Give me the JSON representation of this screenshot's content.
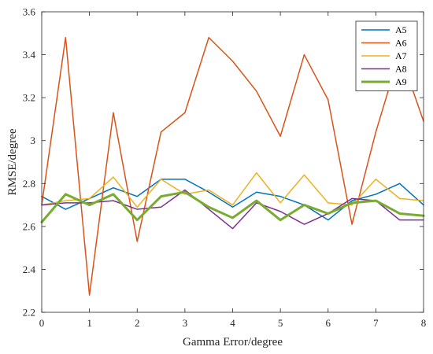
{
  "chart_data": {
    "type": "line",
    "xlabel": "Gamma Error/degree",
    "ylabel": "RMSE/degree",
    "xlim": [
      0,
      8
    ],
    "ylim": [
      2.2,
      3.6
    ],
    "xticks": [
      "0",
      "1",
      "2",
      "3",
      "4",
      "5",
      "6",
      "7",
      "8"
    ],
    "yticks": [
      "2.2",
      "2.4",
      "2.6",
      "2.8",
      "3",
      "3.2",
      "3.4",
      "3.6"
    ],
    "grid": false,
    "legend_position": "top-right",
    "x": [
      0,
      0.5,
      1,
      1.5,
      2,
      2.5,
      3,
      3.5,
      4,
      4.5,
      5,
      5.5,
      6,
      6.5,
      7,
      7.5,
      8
    ],
    "series": [
      {
        "name": "A5",
        "color": "#0072bd",
        "width": 1.5,
        "values": [
          2.74,
          2.68,
          2.73,
          2.78,
          2.74,
          2.82,
          2.82,
          2.76,
          2.69,
          2.76,
          2.74,
          2.7,
          2.63,
          2.72,
          2.75,
          2.8,
          2.7
        ]
      },
      {
        "name": "A6",
        "color": "#d95319",
        "width": 1.5,
        "values": [
          2.7,
          3.48,
          2.28,
          3.13,
          2.53,
          3.04,
          3.13,
          3.48,
          3.37,
          3.23,
          3.02,
          3.4,
          3.19,
          2.61,
          3.04,
          3.41,
          3.09
        ]
      },
      {
        "name": "A7",
        "color": "#edb120",
        "width": 1.5,
        "values": [
          2.7,
          2.72,
          2.73,
          2.83,
          2.69,
          2.82,
          2.75,
          2.77,
          2.7,
          2.85,
          2.71,
          2.84,
          2.71,
          2.7,
          2.82,
          2.73,
          2.72
        ]
      },
      {
        "name": "A8",
        "color": "#7e2f8e",
        "width": 1.5,
        "values": [
          2.7,
          2.71,
          2.71,
          2.72,
          2.68,
          2.69,
          2.77,
          2.68,
          2.59,
          2.71,
          2.67,
          2.61,
          2.66,
          2.73,
          2.72,
          2.63,
          2.63
        ]
      },
      {
        "name": "A9",
        "color": "#77ac30",
        "width": 3,
        "values": [
          2.62,
          2.75,
          2.7,
          2.75,
          2.63,
          2.74,
          2.76,
          2.69,
          2.64,
          2.72,
          2.63,
          2.7,
          2.66,
          2.71,
          2.72,
          2.66,
          2.65
        ]
      }
    ]
  }
}
